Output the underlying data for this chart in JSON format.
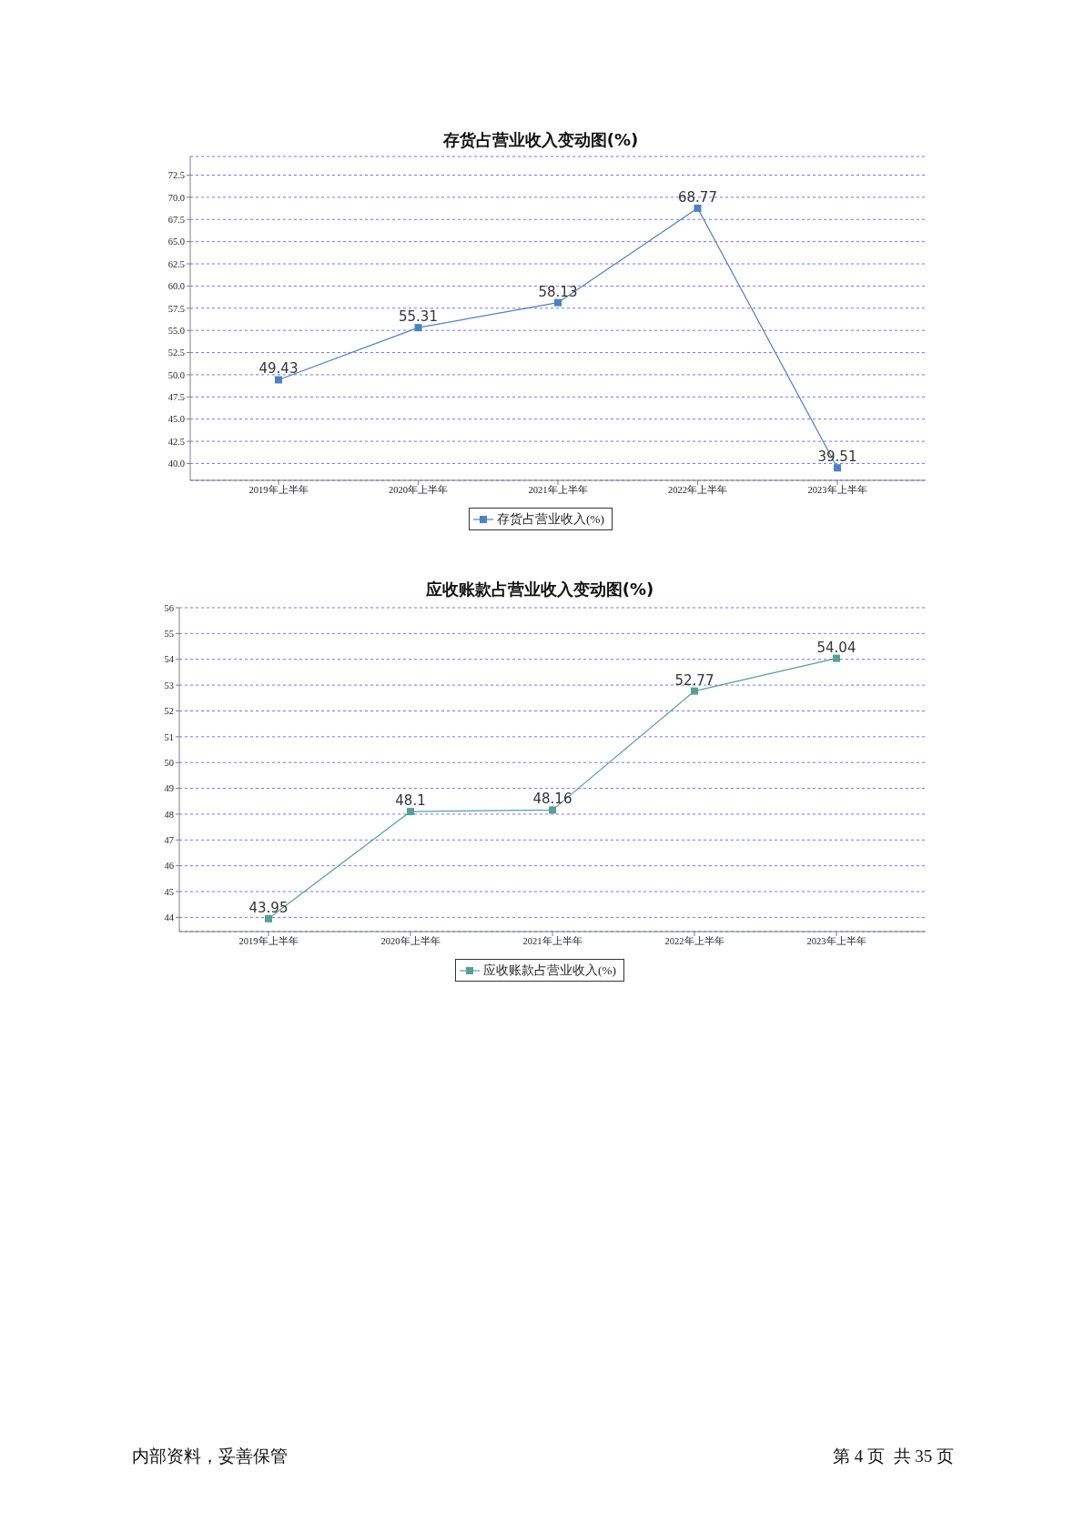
{
  "chart_data": [
    {
      "type": "line",
      "title": "存货占营业收入变动图(%)",
      "categories": [
        "2019年上半年",
        "2020年上半年",
        "2021年上半年",
        "2022年上半年",
        "2023年上半年"
      ],
      "series": [
        {
          "name": "存货占营业收入(%)",
          "color": "#4f81bd",
          "values": [
            49.43,
            55.31,
            58.13,
            68.77,
            39.51
          ]
        }
      ],
      "ylim": [
        38.1,
        74.6
      ],
      "yticks": [
        {
          "value": 40,
          "label": "40.0"
        },
        42.5,
        {
          "value": 45,
          "label": "45.0"
        },
        47.5,
        {
          "value": 50,
          "label": "50.0"
        },
        52.5,
        {
          "value": 55,
          "label": "55.0"
        },
        57.5,
        {
          "value": 60,
          "label": "60.0"
        },
        62.5,
        {
          "value": 65,
          "label": "65.0"
        },
        67.5,
        {
          "value": 70,
          "label": "70.0"
        },
        72.5
      ],
      "grid": "y",
      "legend": "bottom",
      "marker": "square",
      "data_labels": true
    },
    {
      "type": "line",
      "title": "应收账款占营业收入变动图(%)",
      "categories": [
        "2019年上半年",
        "2020年上半年",
        "2021年上半年",
        "2022年上半年",
        "2023年上半年"
      ],
      "series": [
        {
          "name": "应收账款占营业收入(%)",
          "color": "#5a9e97",
          "values": [
            43.95,
            48.1,
            48.16,
            52.77,
            54.04
          ]
        }
      ],
      "ylim": [
        43.45,
        56
      ],
      "yticks": [
        44,
        45,
        46,
        47,
        48,
        49,
        50,
        51,
        52,
        53,
        54,
        55,
        56
      ],
      "grid": "y",
      "legend": "bottom",
      "marker": "square",
      "data_labels": true,
      "annotations": [
        "内部资料，妥善保管",
        "第 4 页  共 35 页"
      ]
    }
  ]
}
